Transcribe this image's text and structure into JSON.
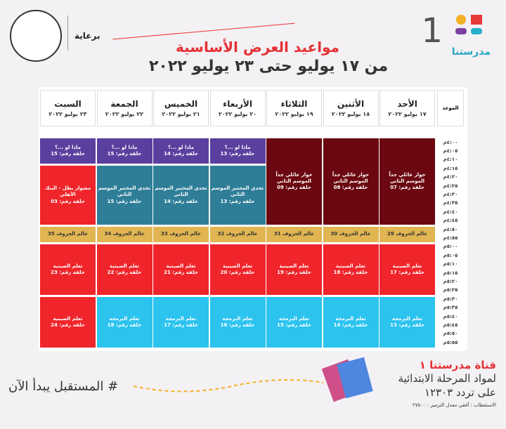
{
  "header": {
    "logo_number": "1",
    "logo_text": "مدرستنا",
    "sponsor": "برعاية",
    "title": "مواعيد العرض الأساسية",
    "subtitle": "من ١٧ يوليو حتى ٢٣ يوليو ٢٠٢٢"
  },
  "table": {
    "time_header": "الموعد",
    "times": [
      "٤:٠٠م",
      "٤:٠٥م",
      "٤:١٠م",
      "٤:١٥م",
      "٤:٢٠م",
      "٤:٢٥م",
      "٤:٣٠م",
      "٤:٣٥م",
      "٤:٤٠م",
      "٤:٤٥م",
      "٤:٥٠م",
      "٤:٥٥م",
      "٥:٠٠م",
      "٥:٠٥م",
      "٥:١٠م",
      "٥:١٥م",
      "٥:٢٠م",
      "٥:٢٥م",
      "٥:٣٠م",
      "٥:٣٥م",
      "٥:٤٠م",
      "٥:٤٥م",
      "٥:٥٠م",
      "٥:٥٥م"
    ],
    "days": [
      {
        "name": "الأحد",
        "date": "١٧ يوليو ٢٠٢٢",
        "blocks": [
          {
            "title": "حوار عائلي جداً الموسم الثاني",
            "episode": "حلقة رقم: 07",
            "color": "#6b0710"
          },
          {
            "title": "عالم الحروف 29",
            "color": "#e0b552"
          },
          {
            "title": "تعلم الصينية",
            "episode": "حلقة رقم: 17",
            "color": "#f0252b"
          },
          {
            "title": "تعلم البرمجة",
            "episode": "حلقة رقم: 13",
            "color": "#2cc3ef"
          }
        ]
      },
      {
        "name": "الأثنين",
        "date": "١٨ يوليو ٢٠٢٢",
        "blocks": [
          {
            "title": "حوار عائلي جداً الموسم الثاني",
            "episode": "حلقة رقم: 08",
            "color": "#6b0710"
          },
          {
            "title": "عالم الحروف 30",
            "color": "#e0b552"
          },
          {
            "title": "تعلم الصينية",
            "episode": "حلقة رقم: 18",
            "color": "#f0252b"
          },
          {
            "title": "تعلم البرمجة",
            "episode": "حلقة رقم: 14",
            "color": "#2cc3ef"
          }
        ]
      },
      {
        "name": "الثلاثاء",
        "date": "١٩ يوليو ٢٠٢٢",
        "blocks": [
          {
            "title": "حوار عائلي جداً الموسم الثاني",
            "episode": "حلقة رقم: 09",
            "color": "#6b0710"
          },
          {
            "title": "عالم الحروف 31",
            "color": "#e0b552"
          },
          {
            "title": "تعلم الصينية",
            "episode": "حلقة رقم: 19",
            "color": "#f0252b"
          },
          {
            "title": "تعلم البرمجة",
            "episode": "حلقة رقم: 15",
            "color": "#2cc3ef"
          }
        ]
      },
      {
        "name": "الأربعاء",
        "date": "٢٠ يوليو ٢٠٢٢",
        "blocks": [
          {
            "title": "ماذا لو ...؟",
            "episode": "حلقة رقم: 13",
            "color": "#5b3f9e"
          },
          {
            "title": "تحدي المختبر الموسم الثاني",
            "episode": "حلقة رقم: 13",
            "color": "#2f7e98"
          },
          {
            "title": "عالم الحروف 32",
            "color": "#e0b552"
          },
          {
            "title": "تعلم الصينية",
            "episode": "حلقة رقم: 20",
            "color": "#f0252b"
          },
          {
            "title": "تعلم البرمجة",
            "episode": "حلقة رقم: 16",
            "color": "#2cc3ef"
          }
        ]
      },
      {
        "name": "الخميس",
        "date": "٢١ يوليو ٢٠٢٢",
        "blocks": [
          {
            "title": "ماذا لو ...؟",
            "episode": "حلقة رقم: 14",
            "color": "#5b3f9e"
          },
          {
            "title": "تحدي المختبر الموسم الثاني",
            "episode": "حلقة رقم: 14",
            "color": "#2f7e98"
          },
          {
            "title": "عالم الحروف 33",
            "color": "#e0b552"
          },
          {
            "title": "تعلم الصينية",
            "episode": "حلقة رقم: 21",
            "color": "#f0252b"
          },
          {
            "title": "تعلم البرمجة",
            "episode": "حلقة رقم: 17",
            "color": "#2cc3ef"
          }
        ]
      },
      {
        "name": "الجمعة",
        "date": "٢٢ يوليو ٢٠٢٢",
        "blocks": [
          {
            "title": "ماذا لو ...؟",
            "episode": "حلقة رقم: 15",
            "color": "#5b3f9e"
          },
          {
            "title": "تحدي المختبر الموسم الثاني",
            "episode": "حلقة رقم: 15",
            "color": "#2f7e98"
          },
          {
            "title": "عالم الحروف 34",
            "color": "#e0b552"
          },
          {
            "title": "تعلم الصينية",
            "episode": "حلقة رقم: 22",
            "color": "#f0252b"
          },
          {
            "title": "تعلم البرمجة",
            "episode": "حلقة رقم: 18",
            "color": "#2cc3ef"
          }
        ]
      },
      {
        "name": "السبت",
        "date": "٢٣ يوليو ٢٠٢٢",
        "blocks": [
          {
            "title": "ماذا لو ...؟",
            "episode": "حلقة رقم: 15",
            "color": "#5b3f9e"
          },
          {
            "title": "مشوار بطل - البنك الأهلي",
            "episode": "حلقة رقم: 03",
            "color": "#f0252b"
          },
          {
            "title": "عالم الحروف 35",
            "color": "#e0b552"
          },
          {
            "title": "تعلم الصينية",
            "episode": "حلقة رقم: 23",
            "color": "#f0252b"
          },
          {
            "title": "تعلم الصينية",
            "episode": "حلقة رقم: 24",
            "color": "#f0252b"
          }
        ]
      }
    ]
  },
  "footer": {
    "hashtag": "# المستقبل يبدأ الآن",
    "channel": "قناة مدرستنا ١",
    "line2": "لمواد المرحلة الابتدائية",
    "line3": "على تردد ١٢٣٠٣",
    "line4": "الاستقطاب : أفقي معدل الترميز : ٢٧٥٠٠"
  }
}
